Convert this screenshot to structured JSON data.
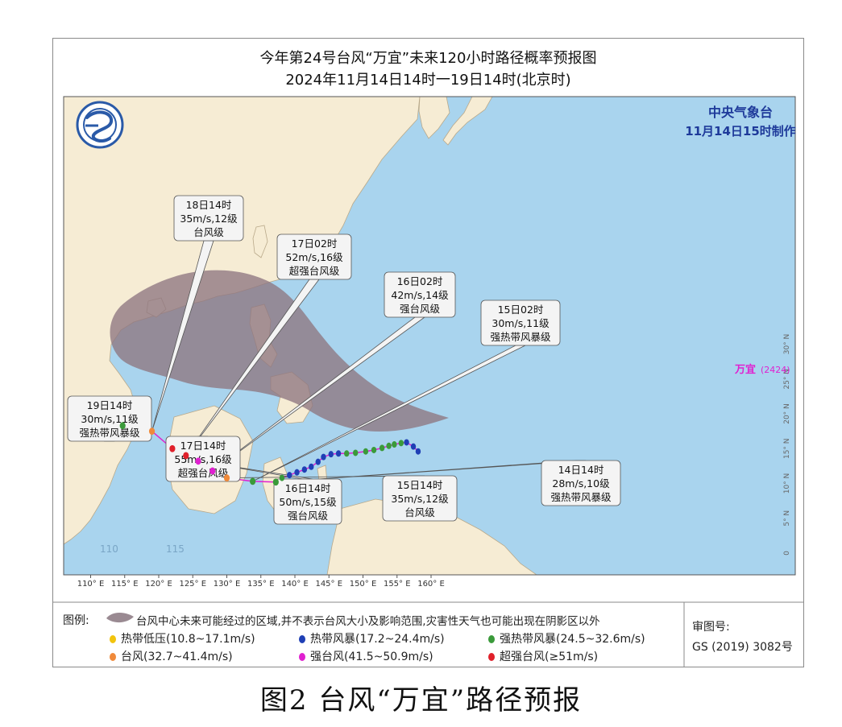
{
  "header": {
    "title": "今年第24号台风“万宜”未来120小时路径概率预报图",
    "subtitle": "2024年11月14日14时一19日14时(北京时)"
  },
  "agency": {
    "name": "中央气象台",
    "issued": "11月14日15时制作"
  },
  "typhoon_label": {
    "name": "万宜",
    "code": "(2424)"
  },
  "axes": {
    "lon_labels": [
      "110° E",
      "115° E",
      "120° E",
      "125° E",
      "130° E",
      "135° E",
      "140° E",
      "145° E",
      "150° E",
      "155° E",
      "160° E"
    ],
    "lat_labels": [
      "30° N",
      "25° N",
      "20° N",
      "15° N",
      "10° N",
      "5° N",
      "0"
    ]
  },
  "map_labels": {
    "bg_110": "110",
    "bg_115": "115"
  },
  "forecast_points": [
    {
      "time": "14日14时",
      "wind": "28m/s,10级",
      "level": "强热带风暴级",
      "lon": 137.2,
      "lat": 10.2,
      "category": "strong_tropical_storm"
    },
    {
      "time": "15日02时",
      "wind": "30m/s,11级",
      "level": "强热带风暴级",
      "lon": 133.8,
      "lat": 10.3,
      "category": "strong_tropical_storm"
    },
    {
      "time": "15日14时",
      "wind": "35m/s,12级",
      "level": "台风级",
      "lon": 130.0,
      "lat": 10.8,
      "category": "typhoon"
    },
    {
      "time": "16日02时",
      "wind": "42m/s,14级",
      "level": "强台风级",
      "lon": 127.9,
      "lat": 11.8,
      "category": "severe_typhoon"
    },
    {
      "time": "16日14时",
      "wind": "50m/s,15级",
      "level": "强台风级",
      "lon": 125.8,
      "lat": 13.2,
      "category": "severe_typhoon"
    },
    {
      "time": "17日02时",
      "wind": "52m/s,16级",
      "level": "超强台风级",
      "lon": 124.0,
      "lat": 14.0,
      "category": "super_typhoon"
    },
    {
      "time": "17日14时",
      "wind": "55m/s,16级",
      "level": "超强台风级",
      "lon": 122.0,
      "lat": 15.0,
      "category": "super_typhoon"
    },
    {
      "time": "18日14时",
      "wind": "35m/s,12级",
      "level": "台风级",
      "lon": 119.0,
      "lat": 17.5,
      "category": "typhoon"
    },
    {
      "time": "19日14时",
      "wind": "30m/s,11级",
      "level": "强热带风暴级",
      "lon": 114.7,
      "lat": 18.3,
      "category": "strong_tropical_storm"
    }
  ],
  "observed_track": [
    {
      "lon": 158.1,
      "lat": 14.6,
      "category": "tropical_storm"
    },
    {
      "lon": 157.4,
      "lat": 15.3,
      "category": "tropical_storm"
    },
    {
      "lon": 156.4,
      "lat": 15.9,
      "category": "tropical_storm"
    },
    {
      "lon": 155.6,
      "lat": 15.8,
      "category": "strong_tropical_storm"
    },
    {
      "lon": 154.6,
      "lat": 15.6,
      "category": "strong_tropical_storm"
    },
    {
      "lon": 153.8,
      "lat": 15.4,
      "category": "strong_tropical_storm"
    },
    {
      "lon": 152.8,
      "lat": 15.1,
      "category": "strong_tropical_storm"
    },
    {
      "lon": 151.6,
      "lat": 14.8,
      "category": "strong_tropical_storm"
    },
    {
      "lon": 150.4,
      "lat": 14.6,
      "category": "strong_tropical_storm"
    },
    {
      "lon": 148.9,
      "lat": 14.4,
      "category": "strong_tropical_storm"
    },
    {
      "lon": 147.6,
      "lat": 14.3,
      "category": "strong_tropical_storm"
    },
    {
      "lon": 146.4,
      "lat": 14.3,
      "category": "tropical_storm"
    },
    {
      "lon": 145.3,
      "lat": 14.2,
      "category": "tropical_storm"
    },
    {
      "lon": 144.2,
      "lat": 13.8,
      "category": "tropical_storm"
    },
    {
      "lon": 143.4,
      "lat": 13.1,
      "category": "tropical_storm"
    },
    {
      "lon": 142.4,
      "lat": 12.4,
      "category": "tropical_storm"
    },
    {
      "lon": 141.4,
      "lat": 12.0,
      "category": "tropical_storm"
    },
    {
      "lon": 140.3,
      "lat": 11.6,
      "category": "tropical_storm"
    },
    {
      "lon": 139.2,
      "lat": 11.2,
      "category": "tropical_storm"
    },
    {
      "lon": 138.1,
      "lat": 10.8,
      "category": "strong_tropical_storm"
    },
    {
      "lon": 137.2,
      "lat": 10.2,
      "category": "strong_tropical_storm"
    }
  ],
  "legend": {
    "heading": "图例:",
    "cone_text": "台风中心未来可能经过的区域,并不表示台风大小及影响范围,灾害性天气也可能出现在阴影区以外",
    "items": [
      {
        "label": "热带低压(10.8~17.1m/s)",
        "color": "#f2c40d"
      },
      {
        "label": "热带风暴(17.2~24.4m/s)",
        "color": "#1f3fb5"
      },
      {
        "label": "强热带风暴(24.5~32.6m/s)",
        "color": "#3a9a3a"
      },
      {
        "label": "台风(32.7~41.4m/s)",
        "color": "#f08a3a"
      },
      {
        "label": "强台风(41.5~50.9m/s)",
        "color": "#e020d0"
      },
      {
        "label": "超强台风(≥51m/s)",
        "color": "#e0202a"
      }
    ]
  },
  "approval": {
    "label": "审图号:",
    "number": "GS (2019) 3082号"
  },
  "caption": "图2 台风“万宜”路径预报",
  "colors": {
    "ocean": "#a9d4ee",
    "land": "#f6ecd4",
    "track": "#e020d0",
    "cone": "#8e7680",
    "agency_text": "#1e3a9a",
    "typhoon_label": "#e020d0"
  }
}
